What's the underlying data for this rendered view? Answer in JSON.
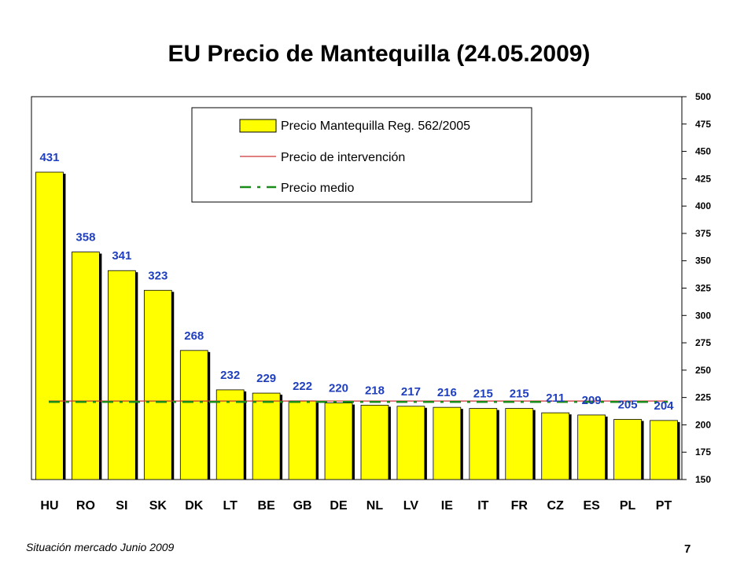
{
  "chart_data": {
    "type": "bar",
    "title": "EU Precio de Mantequilla (24.05.2009)",
    "categories": [
      "HU",
      "RO",
      "SI",
      "SK",
      "DK",
      "LT",
      "BE",
      "GB",
      "DE",
      "NL",
      "LV",
      "IE",
      "IT",
      "FR",
      "CZ",
      "ES",
      "PL",
      "PT"
    ],
    "series": [
      {
        "name": "Precio Mantequilla Reg. 562/2005",
        "type": "bar",
        "values": [
          431,
          358,
          341,
          323,
          268,
          232,
          229,
          222,
          220,
          218,
          217,
          216,
          215,
          215,
          211,
          209,
          205,
          204
        ]
      },
      {
        "name": "Precio de intervención",
        "type": "line",
        "value": 221.8
      },
      {
        "name": "Precio medio",
        "type": "line",
        "value": 221
      }
    ],
    "ylim": [
      150,
      500
    ],
    "yticks": [
      150,
      175,
      200,
      225,
      250,
      275,
      300,
      325,
      350,
      375,
      400,
      425,
      450,
      475,
      500
    ],
    "y_axis_side": "right",
    "legend_position": "top-center",
    "colors": {
      "bar": "#ffff00",
      "bar_shadow": "#000000",
      "intervention_line": "#cc3333",
      "mean_line": "#1a8c1a",
      "data_label": "#1f3fbf"
    }
  },
  "footer": {
    "source": "Situación mercado Junio 2009",
    "page_number": "7"
  }
}
